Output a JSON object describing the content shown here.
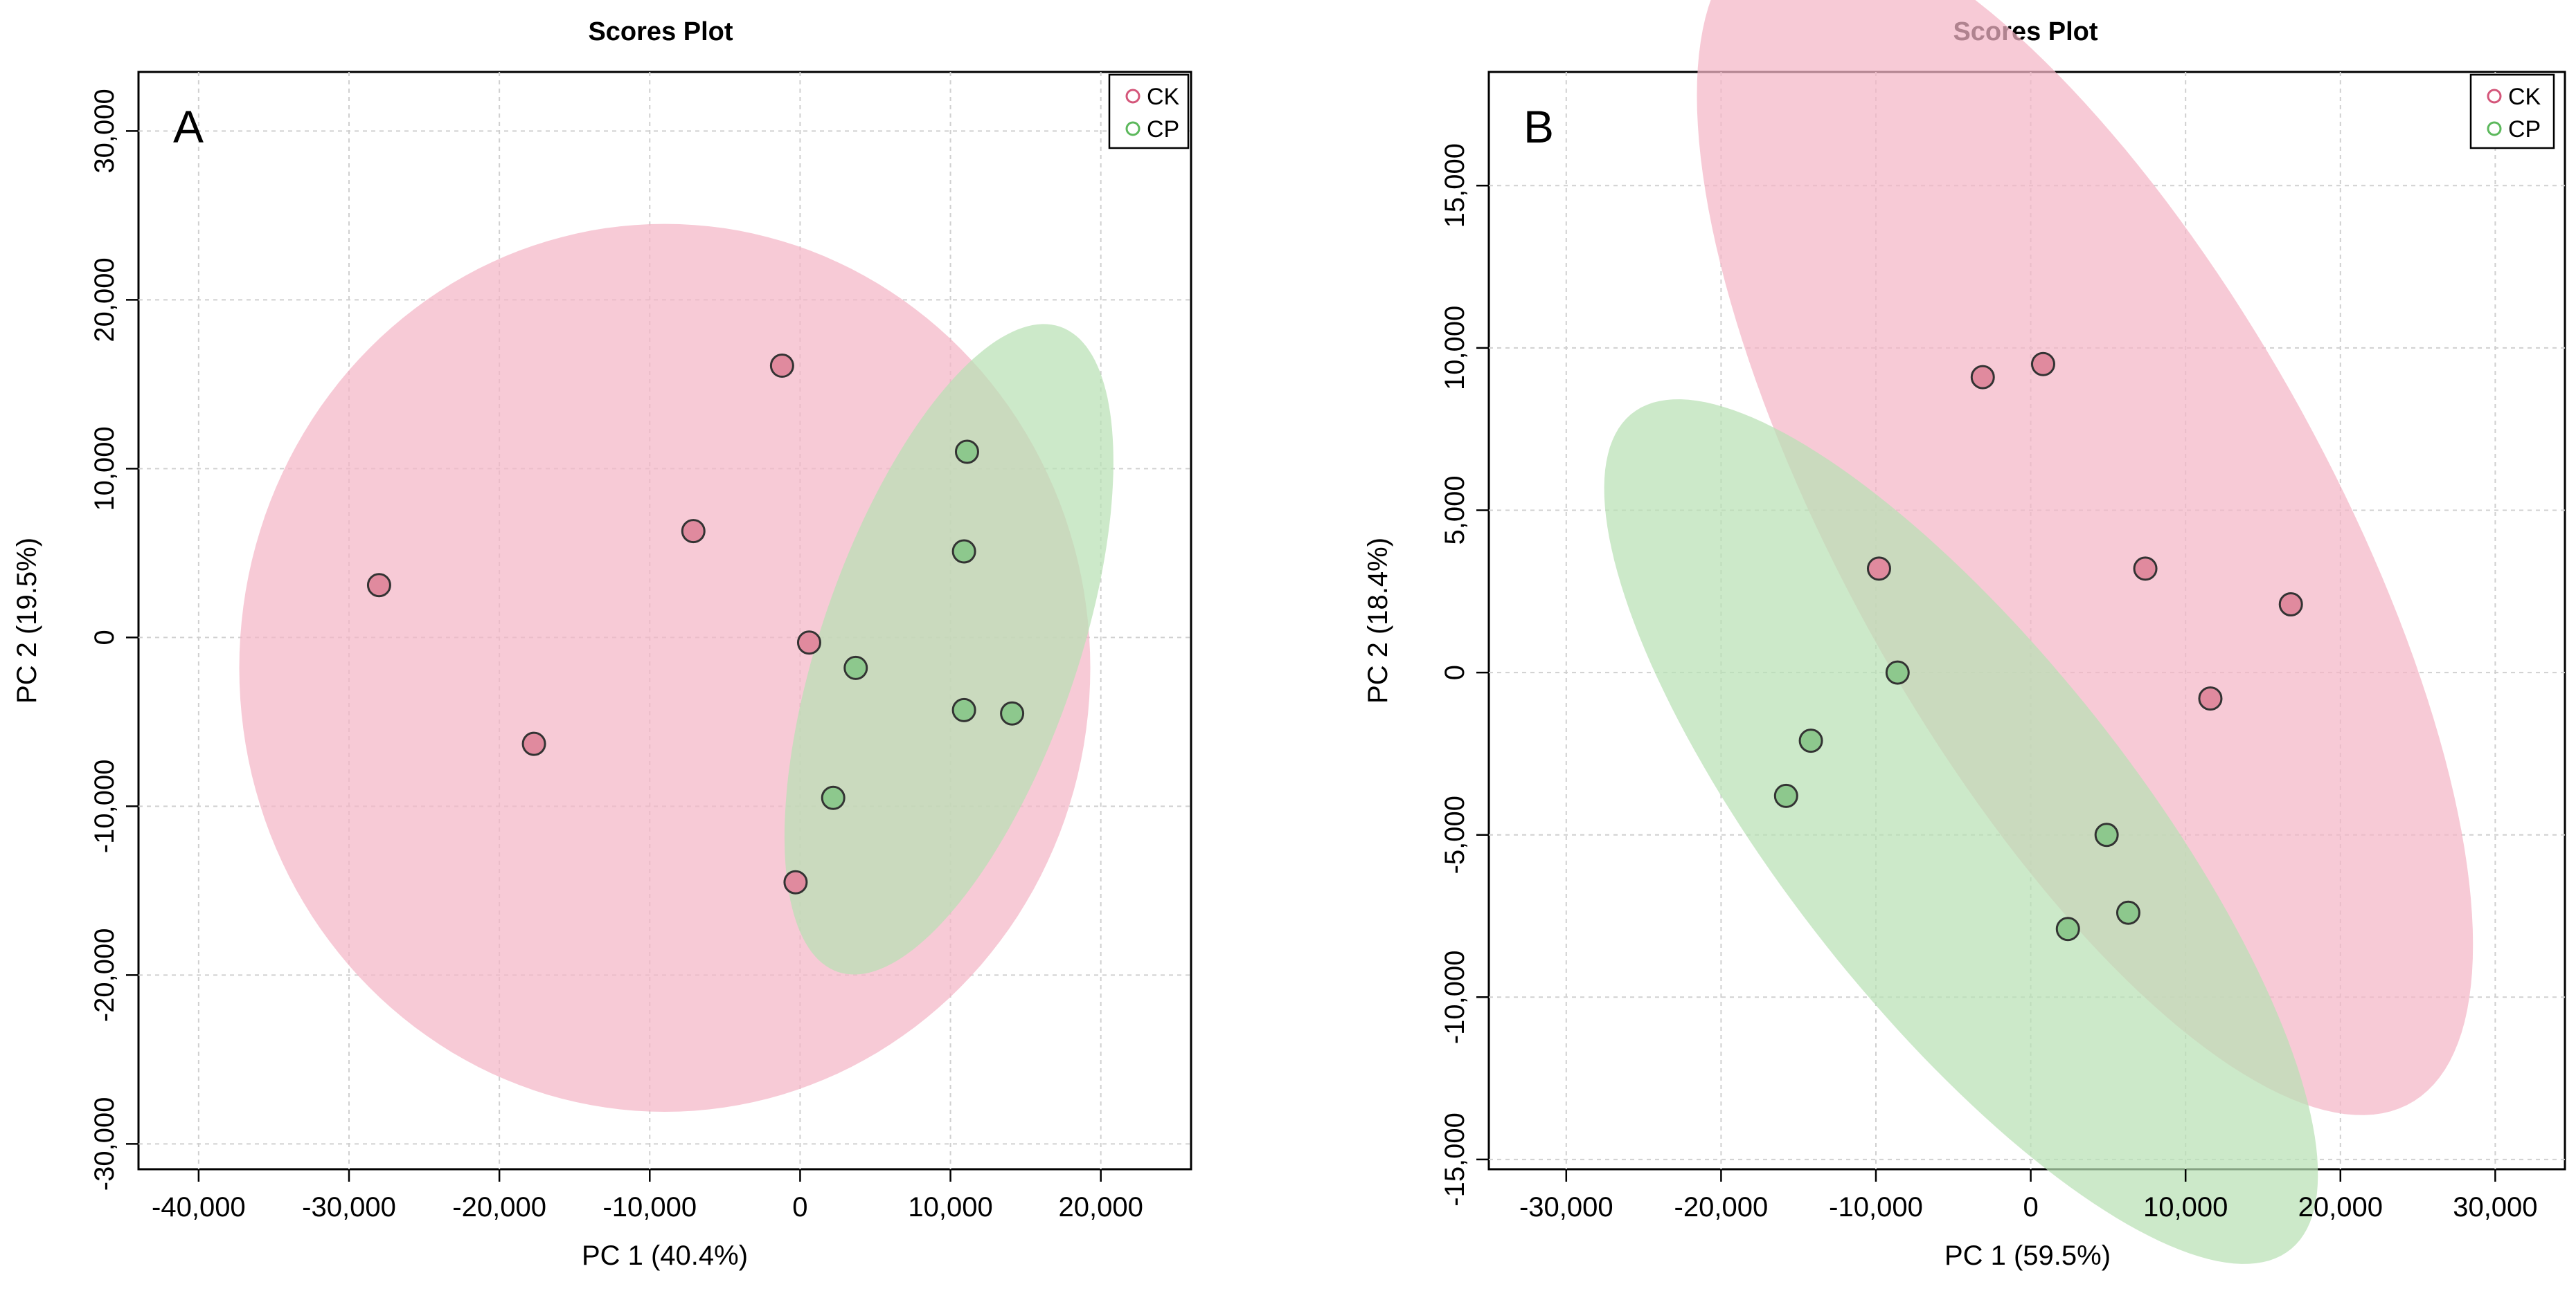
{
  "chart_data": [
    {
      "type": "scatter",
      "title": "Scores Plot",
      "panel_label": "A",
      "xlabel": "PC 1 (40.4%)",
      "ylabel": "PC 2 (19.5%)",
      "xlim": [
        -44000,
        26000
      ],
      "ylim": [
        -31500,
        33500
      ],
      "xticks": [
        -40000,
        -30000,
        -20000,
        -10000,
        0,
        10000,
        20000
      ],
      "xtick_labels": [
        "-40,000",
        "-30,000",
        "-20,000",
        "-10,000",
        "0",
        "10,000",
        "20,000"
      ],
      "yticks": [
        -30000,
        -20000,
        -10000,
        0,
        10000,
        20000,
        30000
      ],
      "ytick_labels": [
        "-30,000",
        "-20,000",
        "-10,000",
        "0",
        "10,000",
        "20,000",
        "30,000"
      ],
      "grid": true,
      "legend_position": "top-right",
      "series": [
        {
          "name": "CK",
          "color": "#d4567a",
          "point_fill": "#e08a9e",
          "ellipse_fill": "#f4b6c6",
          "ellipse": {
            "cx": -9000,
            "cy": -1800,
            "rx": 28300,
            "ry": 26300,
            "angle_deg": 0
          },
          "points": [
            {
              "x": -28000,
              "y": 3100
            },
            {
              "x": -17700,
              "y": -6300
            },
            {
              "x": -7100,
              "y": 6300
            },
            {
              "x": -1200,
              "y": 16100
            },
            {
              "x": 600,
              "y": -300
            },
            {
              "x": -300,
              "y": -14500
            }
          ]
        },
        {
          "name": "CP",
          "color": "#5cb85c",
          "point_fill": "#8dc88d",
          "ellipse_fill": "#b8e0b4",
          "ellipse": {
            "cx": 9900,
            "cy": -700,
            "rx": 20500,
            "ry": 8400,
            "angle_deg": 68
          },
          "points": [
            {
              "x": 11100,
              "y": 11000
            },
            {
              "x": 10900,
              "y": 5100
            },
            {
              "x": 3700,
              "y": -1800
            },
            {
              "x": 10900,
              "y": -4300
            },
            {
              "x": 14100,
              "y": -4500
            },
            {
              "x": 2200,
              "y": -9500
            }
          ]
        }
      ]
    },
    {
      "type": "scatter",
      "title": "Scores Plot",
      "panel_label": "B",
      "xlabel": "PC 1 (59.5%)",
      "ylabel": "PC 2 (18.4%)",
      "xlim": [
        -35000,
        34500
      ],
      "ylim": [
        -15300,
        18500
      ],
      "xticks": [
        -30000,
        -20000,
        -10000,
        0,
        10000,
        20000,
        30000
      ],
      "xtick_labels": [
        "-30,000",
        "-20,000",
        "-10,000",
        "0",
        "10,000",
        "20,000",
        "30,000"
      ],
      "yticks": [
        -15000,
        -10000,
        -5000,
        0,
        5000,
        10000,
        15000
      ],
      "ytick_labels": [
        "-15,000",
        "-10,000",
        "-5,000",
        "0",
        "5,000",
        "10,000",
        "15,000"
      ],
      "grid": true,
      "legend_position": "top-right",
      "series": [
        {
          "name": "CK",
          "color": "#d4567a",
          "point_fill": "#e08a9e",
          "ellipse_fill": "#f4b6c6",
          "ellipse": {
            "cx": 3500,
            "cy": 4700,
            "rx": 29000,
            "ry": 11100,
            "angle_deg": -33
          },
          "points": [
            {
              "x": -3100,
              "y": 9100
            },
            {
              "x": 800,
              "y": 9500
            },
            {
              "x": -9800,
              "y": 3200
            },
            {
              "x": 7400,
              "y": 3200
            },
            {
              "x": 16800,
              "y": 2100
            },
            {
              "x": 11600,
              "y": -800
            }
          ]
        },
        {
          "name": "CP",
          "color": "#5cb85c",
          "point_fill": "#8dc88d",
          "ellipse_fill": "#b8e0b4",
          "ellipse": {
            "cx": -4500,
            "cy": -4900,
            "rx": 25600,
            "ry": 7300,
            "angle_deg": -27
          },
          "points": [
            {
              "x": -8600,
              "y": 0
            },
            {
              "x": -14200,
              "y": -2100
            },
            {
              "x": -15800,
              "y": -3800
            },
            {
              "x": 4900,
              "y": -5000
            },
            {
              "x": 2400,
              "y": -7900
            },
            {
              "x": 6300,
              "y": -7400
            }
          ]
        }
      ]
    }
  ]
}
